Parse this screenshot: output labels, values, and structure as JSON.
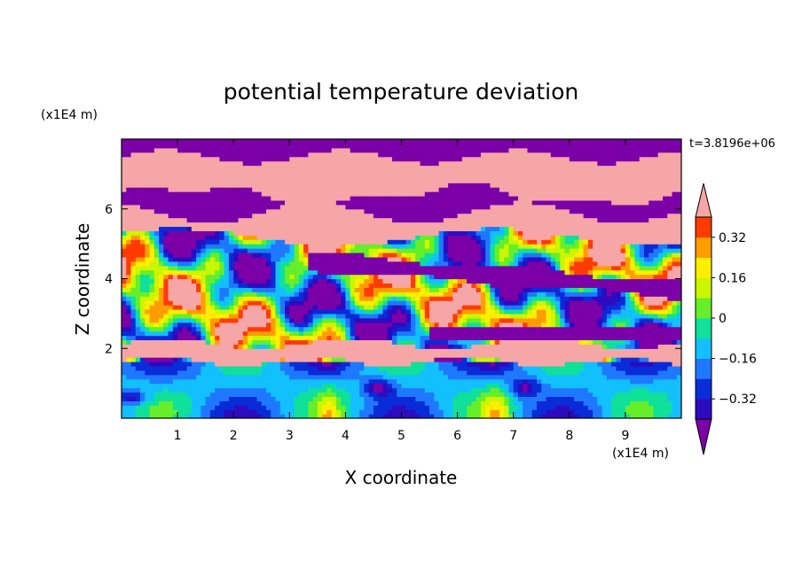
{
  "chart_data": {
    "type": "heatmap",
    "title": "potential temperature deviation",
    "xlabel": "X coordinate",
    "ylabel": "Z coordinate",
    "x_unit": "(x1E4 m)",
    "y_unit": "(x1E4 m)",
    "time_label": "t=3.8196e+06",
    "xlim": [
      0,
      10
    ],
    "ylim": [
      0,
      8
    ],
    "x_ticks": [
      "1",
      "2",
      "3",
      "4",
      "5",
      "6",
      "7",
      "8",
      "9"
    ],
    "y_ticks": [
      "2",
      "4",
      "6"
    ],
    "colorbar": {
      "levels": [
        -0.4,
        -0.32,
        -0.24,
        -0.16,
        -0.08,
        0,
        0.08,
        0.16,
        0.24,
        0.32,
        0.4
      ],
      "labels": [
        "0.32",
        "0.16",
        "0",
        "−0.16",
        "−0.32"
      ],
      "label_values": [
        0.32,
        0.16,
        0,
        -0.16,
        -0.32
      ],
      "under_color": "#7b00a8",
      "over_color": "#f6a6a6",
      "colors": [
        "#2d0bbf",
        "#0a2bd8",
        "#1f78ff",
        "#12c0ff",
        "#0fe09a",
        "#66ee2a",
        "#ccf500",
        "#ffee00",
        "#ff9d00",
        "#ff3b00"
      ]
    },
    "layers": [
      {
        "band": [
          7.5,
          8.0
        ],
        "level": "under"
      },
      {
        "band": [
          6.4,
          7.5
        ],
        "level": "over"
      },
      {
        "band": [
          5.9,
          6.4
        ],
        "level": "under"
      },
      {
        "band": [
          5.2,
          5.9
        ],
        "level": "over"
      },
      {
        "band": [
          4.4,
          5.2
        ],
        "level": "mixed"
      },
      {
        "band": [
          3.4,
          4.4
        ],
        "level": "mixed"
      },
      {
        "band": [
          2.3,
          3.4
        ],
        "level": "mixed"
      },
      {
        "band": [
          1.6,
          2.3
        ],
        "level": "over"
      },
      {
        "band": [
          0.0,
          1.6
        ],
        "level": "mixed"
      }
    ]
  }
}
